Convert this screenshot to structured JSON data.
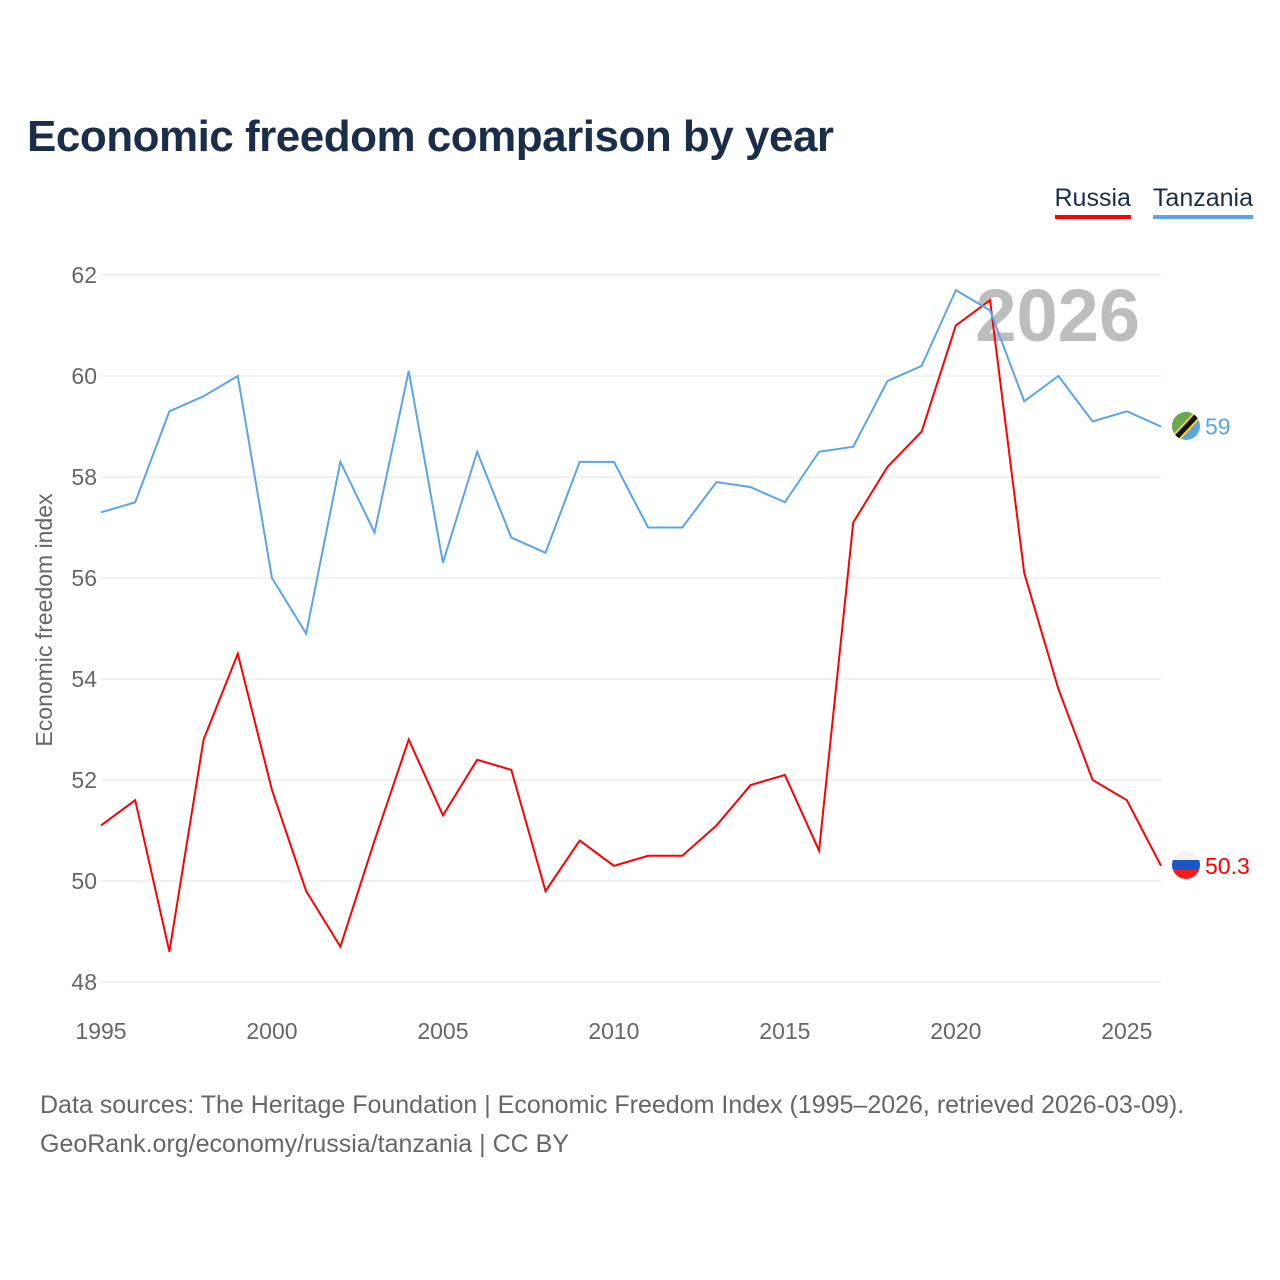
{
  "title": "Economic freedom comparison by year",
  "footer": {
    "line1": "Data sources: The Heritage Foundation | Economic Freedom Index (1995–2026, retrieved 2026-03-09).",
    "line2": "GeoRank.org/economy/russia/tanzania | CC BY"
  },
  "chart_data": {
    "type": "line",
    "title": "Economic freedom comparison by year",
    "xlabel": "",
    "ylabel": "Economic freedom index",
    "xlim": [
      1995,
      2026
    ],
    "ylim": [
      48,
      62
    ],
    "yticks": [
      "48",
      "50",
      "52",
      "54",
      "56",
      "58",
      "60",
      "62"
    ],
    "xticks": [
      "1995",
      "2000",
      "2005",
      "2010",
      "2015",
      "2020",
      "2025"
    ],
    "grid": true,
    "legend": "top-right",
    "watermark_year": "2026",
    "x": [
      1995,
      1996,
      1997,
      1998,
      1999,
      2000,
      2001,
      2002,
      2003,
      2004,
      2005,
      2006,
      2007,
      2008,
      2009,
      2010,
      2011,
      2012,
      2013,
      2014,
      2015,
      2016,
      2017,
      2018,
      2019,
      2020,
      2021,
      2022,
      2023,
      2024,
      2025,
      2026
    ],
    "series": [
      {
        "name": "Russia",
        "color": "#ff0000",
        "end_label": "50.3",
        "values": [
          51.1,
          51.6,
          48.6,
          52.8,
          54.5,
          51.8,
          49.8,
          48.7,
          50.8,
          52.8,
          51.3,
          52.4,
          52.2,
          49.8,
          50.8,
          50.3,
          50.5,
          50.5,
          51.1,
          51.9,
          52.1,
          50.6,
          57.1,
          58.2,
          58.9,
          61.0,
          61.5,
          56.1,
          53.8,
          52.0,
          51.6,
          50.3
        ]
      },
      {
        "name": "Tanzania",
        "color": "#5aa5ea",
        "end_label": "59",
        "values": [
          57.3,
          57.5,
          59.3,
          59.6,
          60.0,
          56.0,
          54.9,
          58.3,
          56.9,
          60.1,
          56.3,
          58.5,
          56.8,
          56.5,
          58.3,
          58.3,
          57.0,
          57.0,
          57.9,
          57.8,
          57.5,
          58.5,
          58.6,
          59.9,
          60.2,
          61.7,
          61.3,
          59.5,
          60.0,
          59.1,
          59.3,
          59.0
        ]
      }
    ]
  }
}
